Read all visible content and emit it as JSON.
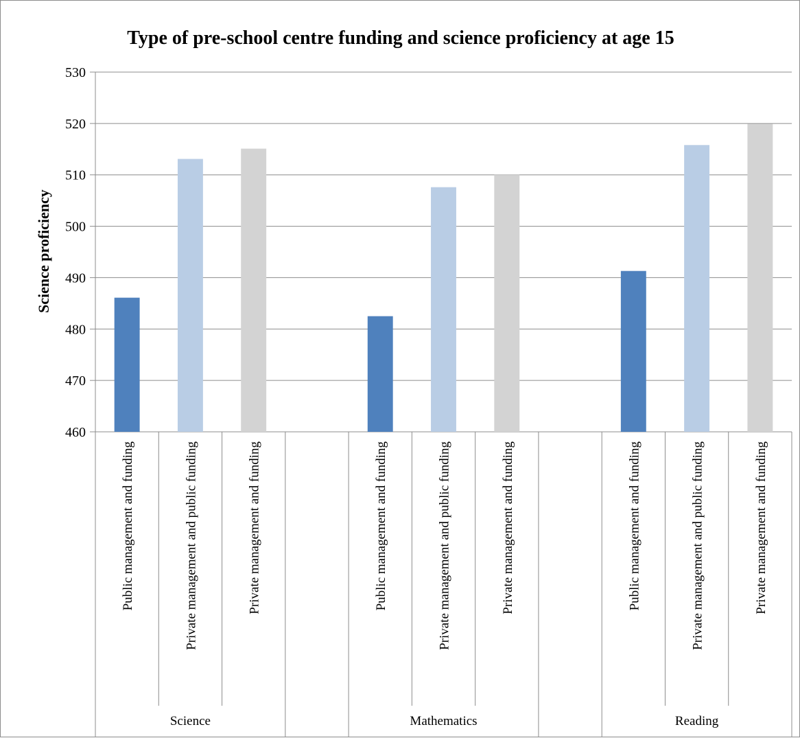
{
  "chart_data": {
    "type": "bar",
    "title": "Type of pre-school centre funding and science proficiency at age 15",
    "ylabel": "Science proficiency",
    "xlabel": "",
    "ylim": [
      460,
      530
    ],
    "yticks": [
      460,
      470,
      480,
      490,
      500,
      510,
      520,
      530
    ],
    "grid": true,
    "groups": [
      {
        "label": "Science",
        "bars": [
          {
            "category": "Public management and funding",
            "value": 486.1,
            "color": "#4f81bd"
          },
          {
            "category": "Private management and public funding",
            "value": 513.1,
            "color": "#b9cde5"
          },
          {
            "category": "Private management and funding",
            "value": 515.1,
            "color": "#d3d3d3"
          }
        ]
      },
      {
        "label": "Mathematics",
        "bars": [
          {
            "category": "Public management and funding",
            "value": 482.5,
            "color": "#4f81bd"
          },
          {
            "category": "Private management and public funding",
            "value": 507.6,
            "color": "#b9cde5"
          },
          {
            "category": "Private management and funding",
            "value": 510.0,
            "color": "#d3d3d3"
          }
        ]
      },
      {
        "label": "Reading",
        "bars": [
          {
            "category": "Public management and funding",
            "value": 491.3,
            "color": "#4f81bd"
          },
          {
            "category": "Private management and public funding",
            "value": 515.8,
            "color": "#b9cde5"
          },
          {
            "category": "Private management and funding",
            "value": 519.9,
            "color": "#d3d3d3"
          }
        ]
      }
    ]
  }
}
